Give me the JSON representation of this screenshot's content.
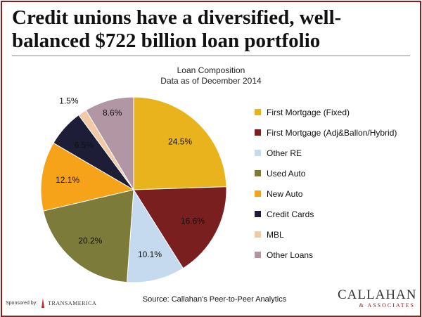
{
  "page": {
    "title": "Credit unions have a diversified, well-balanced $722 billion loan portfolio",
    "source": "Source: Callahan's Peer-to-Peer Analytics",
    "sponsor_label": "Sponsored by:",
    "sponsor_name": "TRANSAMERICA",
    "logo_main": "CALLAHAN",
    "logo_sub": "& ASSOCIATES"
  },
  "colors": {
    "frame": "#8b1c1c"
  },
  "chart_data": {
    "type": "pie",
    "title": "Loan Composition",
    "subtitle": "Data as of December 2014",
    "legend_position": "right",
    "slices": [
      {
        "label": "First Mortgage (Fixed)",
        "value": 24.5,
        "display": "24.5%",
        "color": "#e8b31c"
      },
      {
        "label": "First Mortgage (Adj&Ballon/Hybrid)",
        "value": 16.6,
        "display": "16.6%",
        "color": "#7a1f1f"
      },
      {
        "label": "Other RE",
        "value": 10.1,
        "display": "10.1%",
        "color": "#c5d9ef"
      },
      {
        "label": "Used Auto",
        "value": 20.2,
        "display": "20.2%",
        "color": "#7d7b3a"
      },
      {
        "label": "New Auto",
        "value": 12.1,
        "display": "12.1%",
        "color": "#f6a31a"
      },
      {
        "label": "Credit Cards",
        "value": 6.5,
        "display": "6.5%",
        "color": "#1d1d38"
      },
      {
        "label": "MBL",
        "value": 1.5,
        "display": "1.5%",
        "color": "#f1c9a7"
      },
      {
        "label": "Other Loans",
        "value": 8.6,
        "display": "8.6%",
        "color": "#b396a3"
      }
    ]
  }
}
